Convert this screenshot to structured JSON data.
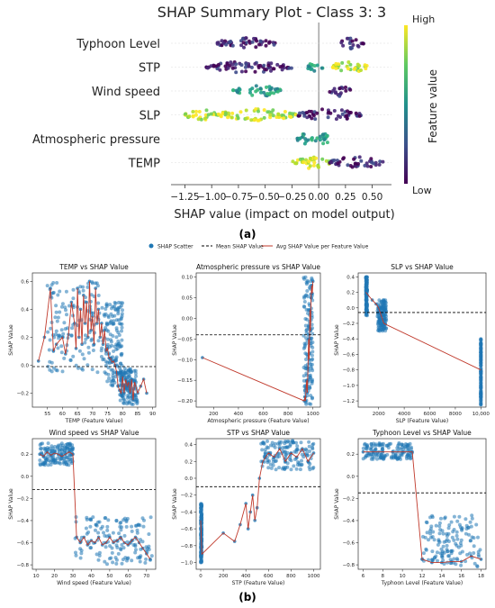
{
  "panel_labels": {
    "a": "(a)",
    "b": "(b)"
  },
  "shap_summary": {
    "title": "SHAP Summary Plot - Class 3: 3",
    "xlabel": "SHAP value (impact on model output)",
    "colorbar_label": "Feature value",
    "colorbar_high": "High",
    "colorbar_low": "Low",
    "colors": {
      "low": "#440154",
      "mid": "#21918c",
      "high": "#fde725"
    }
  },
  "legend": {
    "scatter": "SHAP Scatter",
    "mean": "Mean SHAP Value",
    "avg": "Avg SHAP Value per Feature Value"
  },
  "colors": {
    "scatter": "#1f77b4",
    "avg": "#c0392b",
    "mean": "#000000"
  },
  "chart_data": [
    {
      "id": "summary",
      "type": "scatter",
      "title": "SHAP Summary Plot - Class 3: 3",
      "xlabel": "SHAP value (impact on model output)",
      "xticks": [
        "-1.25",
        "-1.00",
        "-0.75",
        "-0.50",
        "-0.25",
        "0.00",
        "0.25",
        "0.50"
      ],
      "xlim": [
        -1.38,
        0.68
      ],
      "features": [
        {
          "name": "Typhoon Level",
          "clusters": [
            {
              "lo": -0.95,
              "hi": -0.4,
              "c": "low"
            },
            {
              "lo": 0.2,
              "hi": 0.42,
              "c": "low"
            }
          ]
        },
        {
          "name": "STP",
          "clusters": [
            {
              "lo": -1.05,
              "hi": -0.25,
              "c": "low"
            },
            {
              "lo": -0.1,
              "hi": 0.05,
              "c": "mid"
            },
            {
              "lo": 0.1,
              "hi": 0.45,
              "c": "high"
            }
          ]
        },
        {
          "name": "Wind speed",
          "clusters": [
            {
              "lo": -0.8,
              "hi": -0.35,
              "c": "mid"
            },
            {
              "lo": 0.1,
              "hi": 0.3,
              "c": "low"
            }
          ]
        },
        {
          "name": "SLP",
          "clusters": [
            {
              "lo": -1.25,
              "hi": -0.95,
              "c": "high"
            },
            {
              "lo": -0.95,
              "hi": -0.2,
              "c": "high"
            },
            {
              "lo": -0.2,
              "hi": 0.4,
              "c": "low"
            }
          ]
        },
        {
          "name": "Atmospheric pressure",
          "clusters": [
            {
              "lo": -0.2,
              "hi": 0.0,
              "c": "mid"
            },
            {
              "lo": 0.0,
              "hi": 0.1,
              "c": "mid"
            }
          ]
        },
        {
          "name": "TEMP",
          "clusters": [
            {
              "lo": -0.25,
              "hi": 0.1,
              "c": "high"
            },
            {
              "lo": 0.1,
              "hi": 0.6,
              "c": "low"
            }
          ]
        }
      ]
    },
    {
      "id": "temp",
      "type": "scatter",
      "title": "TEMP vs SHAP Value",
      "xlabel": "TEMP (Feature Value)",
      "ylabel": "SHAP Value",
      "xlim": [
        50,
        91
      ],
      "ylim": [
        -0.3,
        0.66
      ],
      "xticks": [
        55,
        60,
        65,
        70,
        75,
        80,
        85,
        90
      ],
      "yticks": [
        -0.2,
        0.0,
        0.2,
        0.4,
        0.6
      ],
      "ytick_labels": [
        "−0.2",
        "0.0",
        "0.2",
        "0.4",
        "0.6"
      ],
      "mean": -0.01,
      "x": [
        52,
        54,
        56,
        57,
        58,
        60,
        61,
        62,
        63,
        64,
        64.5,
        65,
        65.5,
        66,
        66.5,
        67,
        67.5,
        68,
        68.5,
        69,
        69.5,
        70,
        70.5,
        71,
        71.5,
        72,
        72.5,
        73,
        73.5,
        74,
        74.5,
        75,
        75.5,
        76,
        76.5,
        77,
        77.5,
        78,
        78.5,
        79,
        79.5,
        80,
        80.5,
        81,
        81.5,
        82,
        82.5,
        83,
        83.5,
        84,
        85,
        86,
        87,
        88
      ],
      "y": [
        0.03,
        0.2,
        0.55,
        0.1,
        0.15,
        0.2,
        0.08,
        0.22,
        0.45,
        0.3,
        0.12,
        0.55,
        0.2,
        0.4,
        0.15,
        0.5,
        0.3,
        0.45,
        0.2,
        0.6,
        0.25,
        0.35,
        0.15,
        0.55,
        0.3,
        0.4,
        0.2,
        0.3,
        0.15,
        0.25,
        0.1,
        0.12,
        0.05,
        0.05,
        0.02,
        0.03,
        0.0,
        -0.05,
        -0.15,
        -0.18,
        -0.2,
        -0.08,
        -0.2,
        -0.1,
        -0.15,
        -0.12,
        -0.2,
        -0.1,
        -0.25,
        -0.12,
        -0.2,
        -0.15,
        -0.1,
        -0.2
      ],
      "ranges": [
        [
          55,
          74,
          -0.05,
          0.6
        ],
        [
          74,
          80,
          -0.15,
          0.45
        ],
        [
          79,
          85,
          -0.28,
          -0.02
        ]
      ]
    },
    {
      "id": "atm",
      "type": "scatter",
      "title": "Atmospheric pressure vs SHAP Value",
      "xlabel": "Atmospheric pressure (Feature Value)",
      "ylabel": "SHAP Value",
      "xlim": [
        60,
        1060
      ],
      "ylim": [
        -0.215,
        0.11
      ],
      "xticks": [
        200,
        400,
        600,
        800,
        1000
      ],
      "yticks": [
        -0.2,
        -0.15,
        -0.1,
        -0.05,
        0.0,
        0.05,
        0.1
      ],
      "ytick_labels": [
        "−0.20",
        "−0.15",
        "−0.10",
        "−0.05",
        "0.00",
        "0.05",
        "0.10"
      ],
      "mean": -0.04,
      "x": [
        110,
        930,
        935,
        940,
        945,
        950,
        955,
        960,
        965,
        970,
        975,
        980,
        985,
        990,
        995,
        1000
      ],
      "y": [
        -0.095,
        -0.2,
        -0.19,
        -0.2,
        -0.17,
        -0.15,
        -0.18,
        -0.12,
        -0.05,
        -0.1,
        0.02,
        -0.03,
        0.05,
        0.08,
        0.06,
        0.09
      ],
      "ranges": [
        [
          925,
          1000,
          -0.21,
          0.1
        ]
      ]
    },
    {
      "id": "slp",
      "type": "scatter",
      "title": "SLP vs SHAP Value",
      "xlabel": "SLP (Feature Value)",
      "ylabel": "SHAP Value",
      "xlim": [
        400,
        10400
      ],
      "ylim": [
        -1.28,
        0.45
      ],
      "xticks": [
        2000,
        4000,
        6000,
        8000,
        10000
      ],
      "xtick_labels": [
        "2000",
        "4000",
        "6000",
        "8000",
        "10,000"
      ],
      "yticks": [
        -1.2,
        -1.0,
        -0.8,
        -0.6,
        -0.4,
        -0.2,
        0.0,
        0.2,
        0.4
      ],
      "ytick_labels": [
        "−1.2",
        "−1.0",
        "−0.8",
        "−0.6",
        "−0.4",
        "−0.2",
        "0.0",
        "0.2",
        "0.4"
      ],
      "mean": -0.06,
      "x": [
        1000,
        1500,
        1800,
        2000,
        2100,
        2200,
        2300,
        2400,
        10000
      ],
      "y": [
        0.2,
        0.1,
        0.05,
        0.0,
        -0.05,
        -0.1,
        -0.15,
        -0.2,
        -0.8
      ],
      "ranges": [
        [
          1000,
          1100,
          -0.1,
          0.4
        ],
        [
          1900,
          2600,
          -0.3,
          0.1
        ],
        [
          10000,
          10000,
          -1.25,
          -0.4
        ]
      ]
    },
    {
      "id": "wind",
      "type": "scatter",
      "title": "Wind speed vs SHAP Value",
      "xlabel": "Wind speed (Feature Value)",
      "ylabel": "SHAP Value",
      "xlim": [
        8,
        75
      ],
      "ylim": [
        -0.84,
        0.34
      ],
      "xticks": [
        10,
        20,
        30,
        40,
        50,
        60,
        70
      ],
      "yticks": [
        -0.8,
        -0.6,
        -0.4,
        -0.2,
        0.0,
        0.2
      ],
      "ytick_labels": [
        "−0.8",
        "−0.6",
        "−0.4",
        "−0.2",
        "0.0",
        "0.2"
      ],
      "mean": -0.12,
      "x": [
        12,
        14,
        16,
        18,
        20,
        22,
        24,
        26,
        28,
        30,
        32,
        34,
        36,
        38,
        40,
        42,
        44,
        46,
        48,
        50,
        52,
        54,
        56,
        58,
        60,
        62,
        64,
        66,
        68,
        70,
        72
      ],
      "y": [
        0.2,
        0.18,
        0.22,
        0.19,
        0.21,
        0.2,
        0.18,
        0.2,
        0.22,
        0.2,
        -0.55,
        -0.6,
        -0.55,
        -0.62,
        -0.58,
        -0.6,
        -0.55,
        -0.62,
        -0.6,
        -0.55,
        -0.6,
        -0.58,
        -0.55,
        -0.6,
        -0.62,
        -0.58,
        -0.55,
        -0.6,
        -0.65,
        -0.7,
        -0.75
      ],
      "ranges": [
        [
          12,
          30,
          0.1,
          0.3
        ],
        [
          31,
          73,
          -0.8,
          -0.35
        ]
      ]
    },
    {
      "id": "stp",
      "type": "scatter",
      "title": "STP vs SHAP Value",
      "xlabel": "STP (Feature Value)",
      "ylabel": "SHAP Value",
      "xlim": [
        -40,
        1060
      ],
      "ylim": [
        -1.08,
        0.47
      ],
      "xticks": [
        0,
        200,
        400,
        600,
        800,
        1000
      ],
      "yticks": [
        -1.0,
        -0.8,
        -0.6,
        -0.4,
        -0.2,
        0.0,
        0.2,
        0.4
      ],
      "ytick_labels": [
        "−1.0",
        "−0.8",
        "−0.6",
        "−0.4",
        "−0.2",
        "0.0",
        "0.2",
        "0.4"
      ],
      "mean": -0.1,
      "x": [
        0,
        10,
        200,
        300,
        350,
        400,
        420,
        440,
        460,
        480,
        500,
        520,
        550,
        600,
        650,
        700,
        750,
        800,
        850,
        900,
        950,
        1000
      ],
      "y": [
        -0.5,
        -0.9,
        -0.65,
        -0.75,
        -0.55,
        -0.3,
        -0.6,
        -0.4,
        -0.2,
        -0.5,
        -0.35,
        0.0,
        0.2,
        0.3,
        0.25,
        0.35,
        0.2,
        0.3,
        0.25,
        0.35,
        0.2,
        0.3
      ],
      "ranges": [
        [
          0,
          10,
          -1.0,
          -0.3
        ],
        [
          520,
          1000,
          0.1,
          0.45
        ]
      ]
    },
    {
      "id": "typhoon",
      "type": "scatter",
      "title": "Typhoon Level vs SHAP Value",
      "xlabel": "Typhoon Level (Feature Value)",
      "ylabel": "SHAP Value",
      "xlim": [
        5.5,
        18.5
      ],
      "ylim": [
        -0.84,
        0.34
      ],
      "xticks": [
        6,
        8,
        10,
        12,
        14,
        16,
        18
      ],
      "yticks": [
        -0.8,
        -0.6,
        -0.4,
        -0.2,
        0.0,
        0.2
      ],
      "ytick_labels": [
        "−0.8",
        "−0.6",
        "−0.4",
        "−0.2",
        "0.0",
        "0.2"
      ],
      "mean": -0.15,
      "x": [
        6,
        7,
        8,
        9,
        10,
        11,
        12,
        13,
        14,
        15,
        16,
        17,
        18
      ],
      "y": [
        0.22,
        0.22,
        0.22,
        0.22,
        0.22,
        0.22,
        -0.75,
        -0.78,
        -0.78,
        -0.77,
        -0.77,
        -0.72,
        -0.75
      ],
      "ranges": [
        [
          6,
          11,
          0.15,
          0.3
        ],
        [
          12,
          18,
          -0.82,
          -0.35
        ]
      ]
    }
  ]
}
